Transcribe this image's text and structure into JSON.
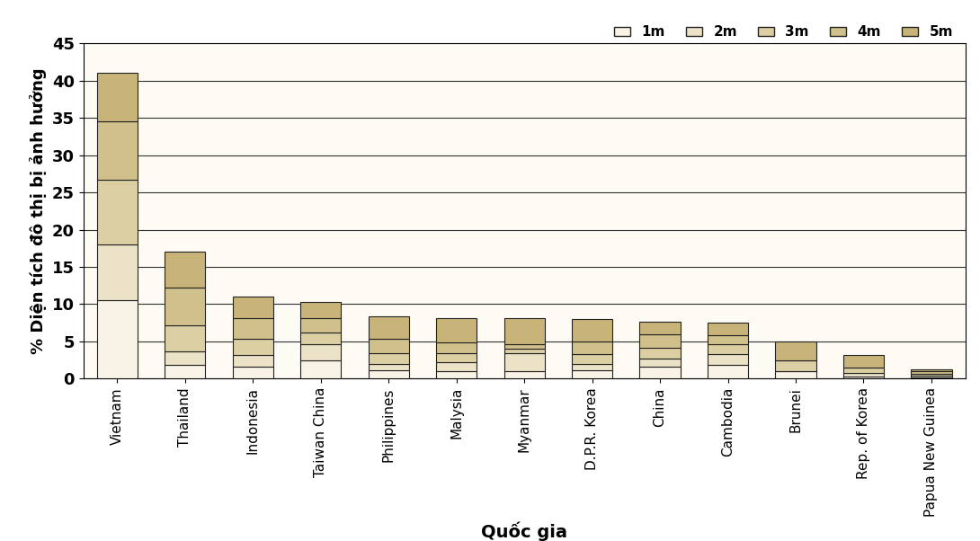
{
  "chart_data": {
    "type": "bar",
    "stacked": true,
    "y_label": "% Diện tích đô thị bị ảnh hưởng",
    "x_label": "Quốc gia",
    "categories": [
      "Vietnam",
      "Thailand",
      "Indonesia",
      "Taiwan China",
      "Philippines",
      "Malysia",
      "Myanmar",
      "D.P.R. Korea",
      "China",
      "Cambodia",
      "Brunei",
      "Rep. of Korea",
      "Papua New Guinea"
    ],
    "series": [
      {
        "name": "1m",
        "color": "#f8f3e6",
        "values": [
          10.5,
          1.8,
          1.6,
          2.5,
          1.1,
          1.0,
          1.0,
          1.1,
          1.6,
          1.8,
          1.0,
          0.3,
          0.2
        ]
      },
      {
        "name": "2m",
        "color": "#ebe2c8",
        "values": [
          7.5,
          1.9,
          1.6,
          2.1,
          0.9,
          1.2,
          2.4,
          0.9,
          1.1,
          1.5,
          0.0,
          0.5,
          0.2
        ]
      },
      {
        "name": "3m",
        "color": "#dccfa4",
        "values": [
          8.7,
          3.5,
          2.2,
          1.6,
          1.4,
          1.2,
          0.6,
          1.3,
          1.5,
          1.3,
          1.4,
          0.7,
          0.3
        ]
      },
      {
        "name": "4m",
        "color": "#d0c08b",
        "values": [
          7.8,
          5.0,
          2.7,
          1.9,
          1.9,
          1.5,
          0.6,
          1.7,
          1.8,
          1.2,
          0.0,
          0.0,
          0.3
        ]
      },
      {
        "name": "5m",
        "color": "#c8b479",
        "values": [
          6.5,
          4.9,
          2.9,
          2.2,
          3.1,
          3.2,
          3.5,
          3.0,
          1.6,
          1.7,
          2.6,
          1.7,
          0.3
        ]
      }
    ],
    "ylim": [
      0,
      45
    ],
    "yticks": [
      0,
      5,
      10,
      15,
      20,
      25,
      30,
      35,
      40,
      45
    ],
    "grid": true,
    "legend": "upper right"
  }
}
